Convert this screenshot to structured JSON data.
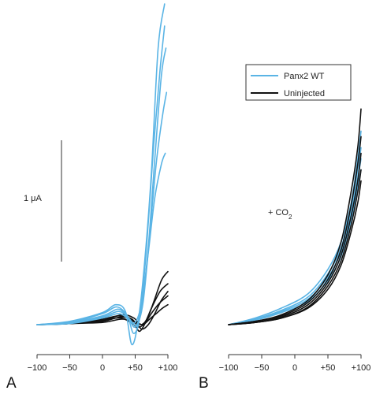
{
  "colors": {
    "panx2": "#5ab4e5",
    "uninjected": "#111111",
    "axis": "#333333"
  },
  "legend": {
    "entries": [
      {
        "label": "Panx2 WT",
        "color": "#5ab4e5"
      },
      {
        "label": "Uninjected",
        "color": "#111111"
      }
    ],
    "placement": "top-right of panel B"
  },
  "chart_data": [
    {
      "panel": "A",
      "type": "line",
      "xlabel": "",
      "ylabel": "",
      "x_ticks": [
        "−100",
        "−50",
        "0",
        "+50",
        "+100"
      ],
      "xlim": [
        -100,
        100
      ],
      "ylim": [
        -0.25,
        2.9
      ],
      "grid": false,
      "scale_bar": {
        "label": "1 μA",
        "value": 1
      },
      "series": [
        {
          "name": "Panx2 WT",
          "points": [
            [
              -100,
              0
            ],
            [
              -50,
              0.03
            ],
            [
              0,
              0.11
            ],
            [
              20,
              0.18
            ],
            [
              35,
              0.12
            ],
            [
              45,
              -0.18
            ],
            [
              55,
              0.05
            ],
            [
              65,
              0.6
            ],
            [
              75,
              1.4
            ],
            [
              85,
              2.5
            ],
            [
              95,
              2.9
            ]
          ]
        },
        {
          "name": "Panx2 WT",
          "points": [
            [
              -100,
              0
            ],
            [
              -50,
              0.02
            ],
            [
              0,
              0.1
            ],
            [
              22,
              0.16
            ],
            [
              38,
              0.08
            ],
            [
              48,
              -0.08
            ],
            [
              58,
              0.1
            ],
            [
              68,
              0.75
            ],
            [
              78,
              1.6
            ],
            [
              88,
              2.3
            ],
            [
              95,
              2.7
            ]
          ]
        },
        {
          "name": "Panx2 WT",
          "points": [
            [
              -100,
              0
            ],
            [
              -50,
              0.02
            ],
            [
              0,
              0.08
            ],
            [
              25,
              0.14
            ],
            [
              40,
              0.05
            ],
            [
              50,
              -0.02
            ],
            [
              60,
              0.15
            ],
            [
              70,
              0.7
            ],
            [
              80,
              1.5
            ],
            [
              90,
              2.25
            ],
            [
              97,
              2.5
            ]
          ]
        },
        {
          "name": "Panx2 WT",
          "points": [
            [
              -100,
              0
            ],
            [
              -50,
              0.02
            ],
            [
              0,
              0.07
            ],
            [
              25,
              0.12
            ],
            [
              40,
              0.06
            ],
            [
              52,
              0.0
            ],
            [
              62,
              0.2
            ],
            [
              72,
              0.8
            ],
            [
              82,
              1.45
            ],
            [
              92,
              1.9
            ],
            [
              98,
              2.1
            ]
          ]
        },
        {
          "name": "Panx2 WT",
          "points": [
            [
              -100,
              0
            ],
            [
              -50,
              0.01
            ],
            [
              0,
              0.06
            ],
            [
              25,
              0.1
            ],
            [
              40,
              0.05
            ],
            [
              50,
              0.02
            ],
            [
              60,
              0.2
            ],
            [
              70,
              0.65
            ],
            [
              80,
              1.15
            ],
            [
              90,
              1.45
            ],
            [
              96,
              1.55
            ]
          ]
        },
        {
          "name": "Uninjected",
          "points": [
            [
              -100,
              0
            ],
            [
              -50,
              0.01
            ],
            [
              0,
              0.04
            ],
            [
              30,
              0.09
            ],
            [
              48,
              0.06
            ],
            [
              58,
              0.0
            ],
            [
              68,
              0.05
            ],
            [
              78,
              0.2
            ],
            [
              90,
              0.4
            ],
            [
              100,
              0.48
            ]
          ]
        },
        {
          "name": "Uninjected",
          "points": [
            [
              -100,
              0
            ],
            [
              -50,
              0.01
            ],
            [
              0,
              0.05
            ],
            [
              25,
              0.08
            ],
            [
              45,
              0.05
            ],
            [
              55,
              -0.02
            ],
            [
              65,
              0.02
            ],
            [
              75,
              0.15
            ],
            [
              88,
              0.3
            ],
            [
              100,
              0.37
            ]
          ]
        },
        {
          "name": "Uninjected",
          "points": [
            [
              -100,
              0
            ],
            [
              -50,
              0.01
            ],
            [
              0,
              0.03
            ],
            [
              30,
              0.07
            ],
            [
              50,
              0.02
            ],
            [
              60,
              -0.04
            ],
            [
              70,
              0.0
            ],
            [
              80,
              0.1
            ],
            [
              90,
              0.22
            ],
            [
              100,
              0.3
            ]
          ]
        },
        {
          "name": "Uninjected",
          "points": [
            [
              -100,
              0
            ],
            [
              -50,
              0.01
            ],
            [
              0,
              0.04
            ],
            [
              28,
              0.06
            ],
            [
              48,
              0.0
            ],
            [
              57,
              -0.06
            ],
            [
              67,
              0.03
            ],
            [
              77,
              0.12
            ],
            [
              88,
              0.2
            ],
            [
              100,
              0.26
            ]
          ]
        },
        {
          "name": "Uninjected",
          "points": [
            [
              -100,
              0
            ],
            [
              -50,
              0.01
            ],
            [
              0,
              0.02
            ],
            [
              30,
              0.05
            ],
            [
              52,
              0.02
            ],
            [
              62,
              0.0
            ],
            [
              72,
              0.05
            ],
            [
              82,
              0.1
            ],
            [
              92,
              0.15
            ],
            [
              100,
              0.18
            ]
          ]
        }
      ]
    },
    {
      "panel": "B",
      "type": "line",
      "xlabel": "",
      "ylabel": "",
      "x_ticks": [
        "−100",
        "−50",
        "0",
        "+50",
        "+100"
      ],
      "xlim": [
        -100,
        100
      ],
      "ylim": [
        -0.25,
        2.9
      ],
      "grid": false,
      "annotation": {
        "text": "+ CO",
        "subscript": "2"
      },
      "series": [
        {
          "name": "Panx2 WT",
          "points": [
            [
              -100,
              0
            ],
            [
              -60,
              0.06
            ],
            [
              -20,
              0.15
            ],
            [
              20,
              0.28
            ],
            [
              50,
              0.5
            ],
            [
              70,
              0.75
            ],
            [
              85,
              1.1
            ],
            [
              95,
              1.5
            ],
            [
              100,
              1.75
            ]
          ]
        },
        {
          "name": "Panx2 WT",
          "points": [
            [
              -100,
              0
            ],
            [
              -60,
              0.05
            ],
            [
              -20,
              0.13
            ],
            [
              20,
              0.25
            ],
            [
              50,
              0.46
            ],
            [
              70,
              0.7
            ],
            [
              85,
              1.05
            ],
            [
              95,
              1.4
            ],
            [
              100,
              1.6
            ]
          ]
        },
        {
          "name": "Panx2 WT",
          "points": [
            [
              -100,
              0
            ],
            [
              -60,
              0.05
            ],
            [
              -20,
              0.12
            ],
            [
              20,
              0.23
            ],
            [
              50,
              0.43
            ],
            [
              70,
              0.66
            ],
            [
              85,
              1.0
            ],
            [
              95,
              1.32
            ],
            [
              100,
              1.5
            ]
          ]
        },
        {
          "name": "Panx2 WT",
          "points": [
            [
              -100,
              0
            ],
            [
              -60,
              0.04
            ],
            [
              -20,
              0.11
            ],
            [
              20,
              0.21
            ],
            [
              50,
              0.4
            ],
            [
              70,
              0.62
            ],
            [
              85,
              0.95
            ],
            [
              95,
              1.25
            ],
            [
              100,
              1.4
            ]
          ]
        },
        {
          "name": "Uninjected",
          "points": [
            [
              -100,
              0
            ],
            [
              -60,
              0.03
            ],
            [
              -20,
              0.09
            ],
            [
              20,
              0.22
            ],
            [
              50,
              0.45
            ],
            [
              70,
              0.75
            ],
            [
              85,
              1.2
            ],
            [
              95,
              1.6
            ],
            [
              100,
              1.95
            ]
          ]
        },
        {
          "name": "Uninjected",
          "points": [
            [
              -100,
              0
            ],
            [
              -60,
              0.03
            ],
            [
              -20,
              0.08
            ],
            [
              20,
              0.2
            ],
            [
              50,
              0.41
            ],
            [
              70,
              0.68
            ],
            [
              85,
              1.08
            ],
            [
              95,
              1.45
            ],
            [
              100,
              1.7
            ]
          ]
        },
        {
          "name": "Uninjected",
          "points": [
            [
              -100,
              0
            ],
            [
              -60,
              0.02
            ],
            [
              -20,
              0.07
            ],
            [
              20,
              0.18
            ],
            [
              50,
              0.38
            ],
            [
              70,
              0.63
            ],
            [
              85,
              0.98
            ],
            [
              95,
              1.3
            ],
            [
              100,
              1.55
            ]
          ]
        },
        {
          "name": "Uninjected",
          "points": [
            [
              -100,
              0
            ],
            [
              -60,
              0.02
            ],
            [
              -20,
              0.06
            ],
            [
              20,
              0.16
            ],
            [
              50,
              0.35
            ],
            [
              70,
              0.58
            ],
            [
              85,
              0.9
            ],
            [
              95,
              1.2
            ],
            [
              100,
              1.4
            ]
          ]
        },
        {
          "name": "Uninjected",
          "points": [
            [
              -100,
              0
            ],
            [
              -60,
              0.02
            ],
            [
              -20,
              0.06
            ],
            [
              20,
              0.15
            ],
            [
              50,
              0.32
            ],
            [
              70,
              0.54
            ],
            [
              85,
              0.84
            ],
            [
              95,
              1.1
            ],
            [
              100,
              1.3
            ]
          ]
        }
      ]
    }
  ],
  "panel_labels": [
    "A",
    "B"
  ]
}
